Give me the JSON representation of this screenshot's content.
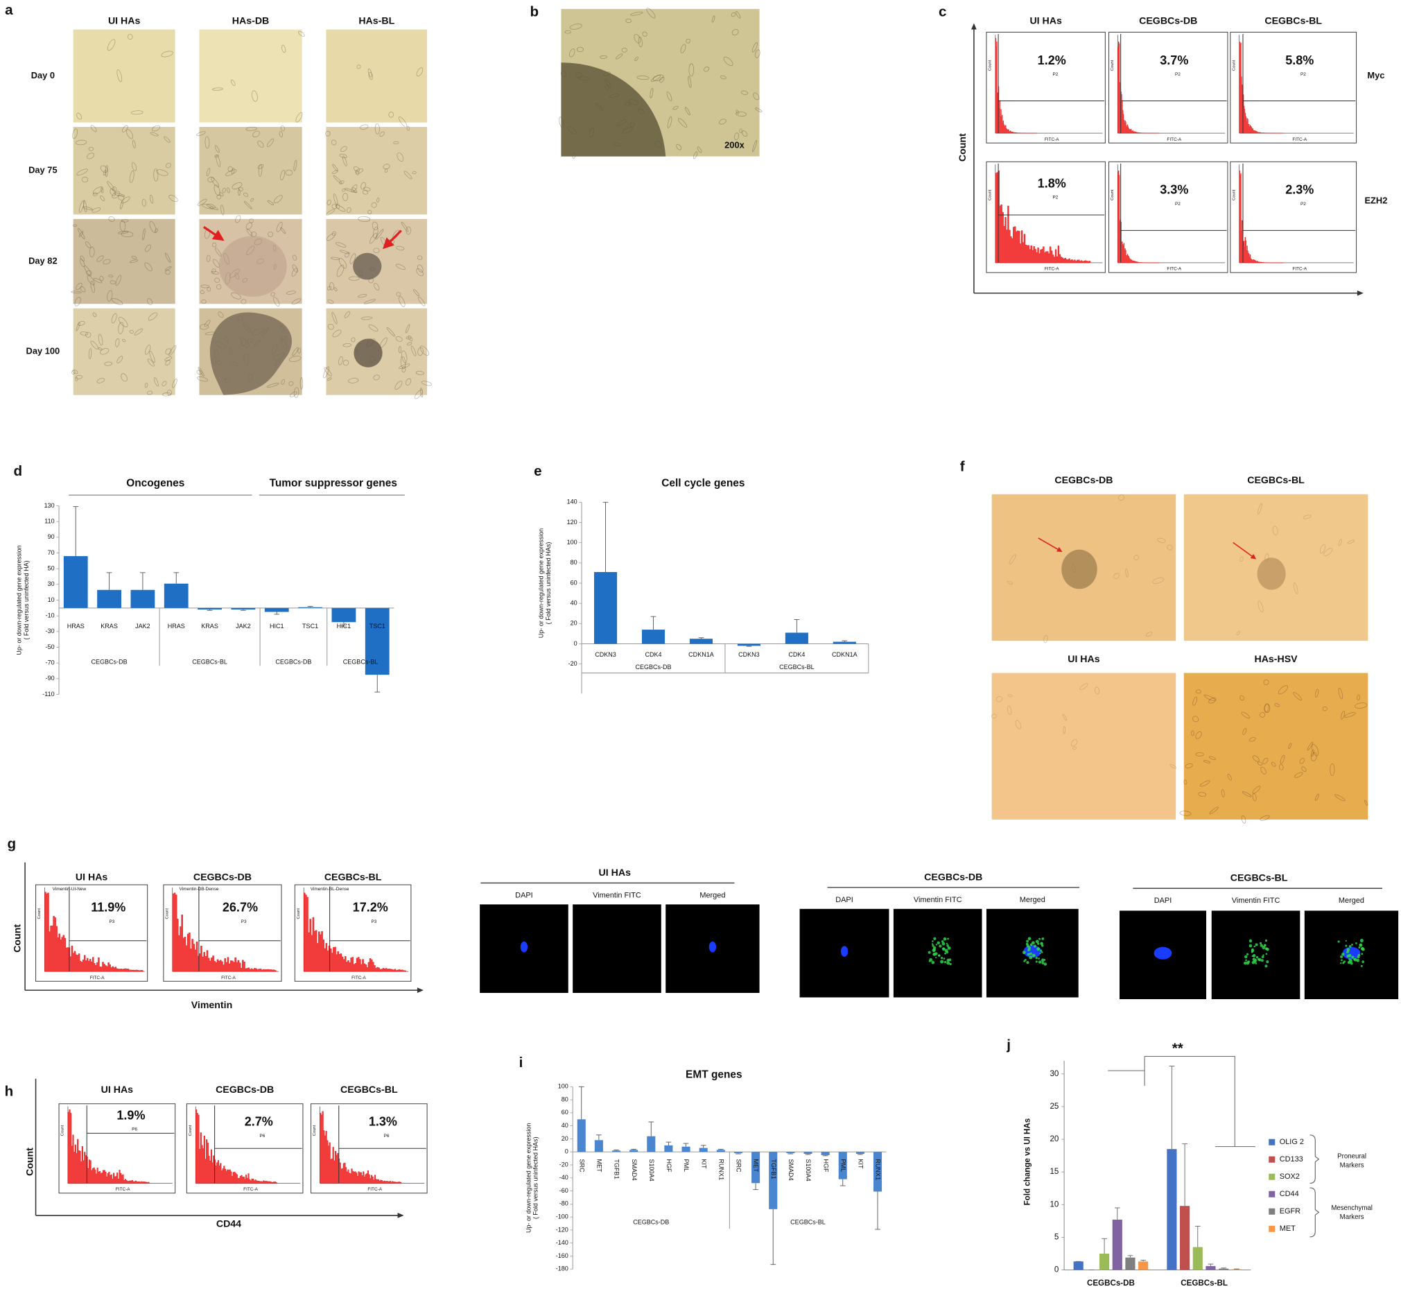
{
  "panel_a": {
    "label": "a",
    "columns": [
      "UI HAs",
      "HAs-DB",
      "HAs-BL"
    ],
    "rows": [
      "Day 0",
      "Day 75",
      "Day 82",
      "Day 100"
    ]
  },
  "panel_b": {
    "label": "b",
    "magnification": "200x"
  },
  "panel_c": {
    "label": "c",
    "columns": [
      "UI HAs",
      "CEGBCs-DB",
      "CEGBCs-BL"
    ],
    "rows": [
      {
        "name": "Myc",
        "percent": [
          "1.2%",
          "3.7%",
          "5.8%"
        ]
      },
      {
        "name": "EZH2",
        "percent": [
          "1.8%",
          "3.3%",
          "2.3%"
        ]
      }
    ],
    "y_label": "Count",
    "x_label": "FITC-A",
    "gate": "P2"
  },
  "panel_f": {
    "label": "f",
    "images": [
      "CEGBCs-DB",
      "CEGBCs-BL",
      "UI HAs",
      "HAs-HSV"
    ]
  },
  "panel_g": {
    "label": "g",
    "histograms": [
      {
        "title": "UI HAs",
        "gate_name": "Vimentin-UI-New",
        "percent": "11.9%"
      },
      {
        "title": "CEGBCs-DB",
        "gate_name": "Vimentin-DB-Dense",
        "percent": "26.7%"
      },
      {
        "title": "CEGBCs-BL",
        "gate_name": "Vimentin-BL-Dense",
        "percent": "17.2%"
      }
    ],
    "gate": "P3",
    "y_label": "Count",
    "x_label": "FITC-A",
    "axis_x_label": "Vimentin",
    "microscopy": [
      {
        "title": "UI HAs",
        "channels": [
          "DAPI",
          "Vimentin FITC",
          "Merged"
        ]
      },
      {
        "title": "CEGBCs-DB",
        "channels": [
          "DAPI",
          "Vimentin FITC",
          "Merged"
        ]
      },
      {
        "title": "CEGBCs-BL",
        "channels": [
          "DAPI",
          "Vimentin FITC",
          "Merged"
        ]
      }
    ]
  },
  "panel_h": {
    "label": "h",
    "histograms": [
      {
        "title": "UI HAs",
        "percent": "1.9%"
      },
      {
        "title": "CEGBCs-DB",
        "percent": "2.7%"
      },
      {
        "title": "CEGBCs-BL",
        "percent": "1.3%"
      }
    ],
    "gate": "P6",
    "y_label": "Count",
    "x_label": "FITC-A",
    "axis_x_label": "CD44"
  },
  "chart_data": [
    {
      "type": "bar",
      "label": "d",
      "headers": [
        "Oncogenes",
        "Tumor suppressor genes"
      ],
      "ylabel": [
        "Up- or down-regulated gene expression",
        "( Fold versus uninfected HA)"
      ],
      "color": "#1f6fc4",
      "ylim": [
        -110,
        130
      ],
      "yticks": [
        -110,
        -90,
        -70,
        -50,
        -30,
        -10,
        10,
        30,
        50,
        70,
        90,
        110,
        130
      ],
      "groups": [
        {
          "name": "CEGBCs-DB",
          "categories": [
            "HRAS",
            "KRAS",
            "JAK2"
          ],
          "values": [
            66,
            23,
            23
          ],
          "errors": [
            63,
            22,
            22
          ]
        },
        {
          "name": "CEGBCs-BL",
          "categories": [
            "HRAS",
            "KRAS",
            "JAK2"
          ],
          "values": [
            31,
            -2,
            -2
          ],
          "errors": [
            14,
            1,
            1
          ]
        },
        {
          "name": "CEGBCs-DB",
          "categories": [
            "HIC1",
            "TSC1"
          ],
          "values": [
            -5,
            1
          ],
          "errors": [
            3,
            1
          ]
        },
        {
          "name": "CEGBCs-BL",
          "categories": [
            "HIC1",
            "TSC1"
          ],
          "values": [
            -18,
            -85
          ],
          "errors": [
            5,
            22
          ]
        }
      ]
    },
    {
      "type": "bar",
      "label": "e",
      "title": "Cell cycle genes",
      "ylabel": [
        "Up- or down-regulated gene expression",
        "( Fold versus uninfected HAs)"
      ],
      "color": "#1f6fc4",
      "ylim": [
        -20,
        140
      ],
      "yticks": [
        -20,
        0,
        20,
        40,
        60,
        80,
        100,
        120,
        140
      ],
      "groups": [
        {
          "name": "CEGBCs-DB",
          "categories": [
            "CDKN3",
            "CDK4",
            "CDKN1A"
          ],
          "values": [
            71,
            14,
            5
          ],
          "errors": [
            69,
            13,
            1
          ]
        },
        {
          "name": "CEGBCs-BL",
          "categories": [
            "CDKN3",
            "CDK4",
            "CDKN1A"
          ],
          "values": [
            -2,
            11,
            2
          ],
          "errors": [
            0.5,
            13,
            1
          ]
        }
      ]
    },
    {
      "type": "bar",
      "label": "i",
      "title": "EMT genes",
      "ylabel": [
        "Up- or down-regulated gene expression",
        "( Fold versus uninfected HAs)"
      ],
      "color": "#4a86cf",
      "ylim": [
        -180,
        100
      ],
      "yticks": [
        -180,
        -160,
        -140,
        -120,
        -100,
        -80,
        -60,
        -40,
        -20,
        0,
        20,
        40,
        60,
        80,
        100
      ],
      "groups": [
        {
          "name": "CEGBCs-DB",
          "categories": [
            "SRC",
            "MET",
            "TGFB1",
            "SMAD4",
            "S100A4",
            "HGF",
            "PML",
            "KIT",
            "RUNX1"
          ],
          "values": [
            50,
            18,
            2,
            3,
            24,
            10,
            8,
            6,
            3
          ],
          "errors": [
            50,
            8,
            1,
            1,
            22,
            5,
            5,
            4,
            1
          ]
        },
        {
          "name": "CEGBCs-BL",
          "categories": [
            "SRC",
            "MET",
            "TGFB1",
            "SMAD4",
            "S100A4",
            "HGF",
            "PML",
            "KIT",
            "RUNX1"
          ],
          "values": [
            -2,
            -48,
            -88,
            -2,
            -3,
            -5,
            -42,
            -3,
            -61
          ],
          "errors": [
            1,
            10,
            85,
            1,
            1,
            1,
            10,
            1,
            58
          ]
        }
      ]
    },
    {
      "type": "grouped_bar",
      "label": "j",
      "annotation": "**",
      "ylabel": "Fold change vs UI HAs",
      "ylim": [
        0,
        32
      ],
      "yticks": [
        0,
        5,
        10,
        15,
        20,
        25,
        30
      ],
      "categories": [
        "CEGBCs-DB",
        "CEGBCs-BL"
      ],
      "series": [
        {
          "name": "OLIG 2",
          "color": "#4472c4",
          "values": [
            1.3,
            18.5
          ],
          "errors": [
            0,
            12.7
          ]
        },
        {
          "name": "CD133",
          "color": "#c0504d",
          "values": [
            0,
            9.8
          ],
          "errors": [
            0,
            9.5
          ]
        },
        {
          "name": "SOX2",
          "color": "#9bbb59",
          "values": [
            2.5,
            3.5
          ],
          "errors": [
            2.3,
            3.2
          ]
        },
        {
          "name": "CD44",
          "color": "#8064a2",
          "values": [
            7.7,
            0.6
          ],
          "errors": [
            1.8,
            0.3
          ]
        },
        {
          "name": "EGFR",
          "color": "#7f7f7f",
          "values": [
            1.9,
            0.2
          ],
          "errors": [
            0.3,
            0.1
          ]
        },
        {
          "name": "MET",
          "color": "#f79646",
          "values": [
            1.3,
            0.1
          ],
          "errors": [
            0.2,
            0.05
          ]
        }
      ],
      "legend_groups": [
        {
          "name": [
            "Proneural",
            "Markers"
          ]
        },
        {
          "name": [
            "Mesenchymal",
            "Markers"
          ]
        }
      ]
    }
  ]
}
